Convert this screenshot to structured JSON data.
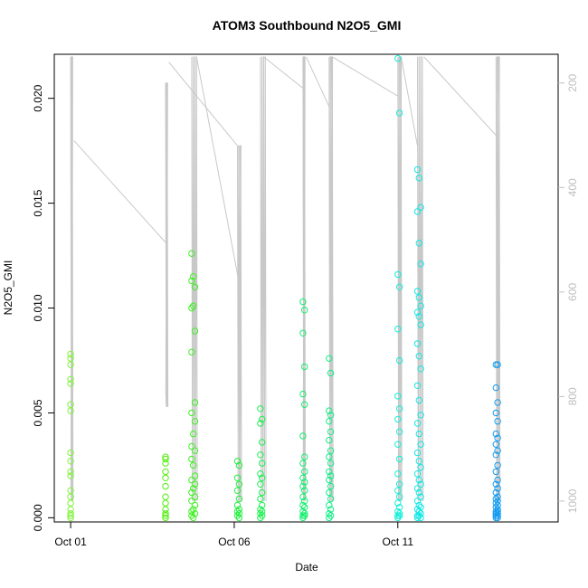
{
  "chart_data": {
    "type": "scatter",
    "title": "ATOM3 Southbound N2O5_GMI",
    "xlabel": "Date",
    "ylabel": "N2O5_GMI",
    "x_ticks": [
      "Oct 01",
      "Oct 06",
      "Oct 11"
    ],
    "x_tick_days": [
      1,
      6,
      11
    ],
    "xlim": [
      0.5,
      15.9
    ],
    "ylim": [
      -0.0002,
      0.0221
    ],
    "y_ticks": [
      0.0,
      0.005,
      0.01,
      0.015,
      0.02
    ],
    "y_tick_labels": [
      "0.000",
      "0.005",
      "0.010",
      "0.015",
      "0.020"
    ],
    "y2_label": "",
    "y2_lim": [
      1040,
      145
    ],
    "y2_ticks": [
      200,
      400,
      600,
      800,
      1000
    ],
    "y2_tick_labels": [
      "200",
      "400",
      "600",
      "800",
      "1000"
    ],
    "y2_reversed": true,
    "grid": false,
    "pressure_line_color": "#c8c8c8",
    "series": [
      {
        "color": "#7ff53a",
        "x": [
          1.0,
          1.0,
          1.0,
          1.0,
          1.0,
          1.0,
          1.0,
          1.0,
          1.0,
          1.0,
          1.0,
          1.0,
          1.0,
          1.0,
          1.0,
          1.0,
          1.0,
          1.0
        ],
        "y": [
          0.0078,
          0.0076,
          0.0073,
          0.0066,
          0.0064,
          0.0054,
          0.0051,
          0.0031,
          0.0027,
          0.0022,
          0.002,
          0.0013,
          0.001,
          0.0007,
          0.0004,
          0.0002,
          0.0001,
          0.0
        ]
      },
      {
        "color": "#52f00f",
        "x": [
          3.9,
          3.9,
          3.9,
          3.9,
          3.9,
          3.9,
          3.9,
          3.9,
          3.9,
          3.9,
          3.9,
          3.9
        ],
        "y": [
          0.0029,
          0.0028,
          0.0026,
          0.0022,
          0.0019,
          0.0015,
          0.001,
          0.0007,
          0.0004,
          0.0002,
          0.0001,
          0.0
        ]
      },
      {
        "color": "#3cf21f",
        "x": [
          4.7,
          4.75,
          4.7,
          4.8,
          4.75,
          4.7,
          4.8,
          4.7,
          4.8,
          4.7,
          4.8,
          4.75,
          4.7,
          4.8,
          4.7,
          4.75,
          4.8,
          4.7,
          4.8,
          4.75,
          4.7,
          4.8,
          4.7,
          4.8,
          4.75,
          4.7,
          4.8,
          4.7,
          4.75
        ],
        "y": [
          0.0126,
          0.0115,
          0.0113,
          0.011,
          0.0101,
          0.01,
          0.0089,
          0.0079,
          0.0055,
          0.005,
          0.0046,
          0.004,
          0.0034,
          0.0032,
          0.0028,
          0.0025,
          0.002,
          0.0018,
          0.0016,
          0.0014,
          0.0012,
          0.001,
          0.0008,
          0.0006,
          0.0004,
          0.0003,
          0.0002,
          0.0001,
          0.0
        ]
      },
      {
        "color": "#1ef03c",
        "x": [
          6.1,
          6.15,
          6.1,
          6.15,
          6.1,
          6.15,
          6.1,
          6.15,
          6.1,
          6.15,
          6.1,
          6.15
        ],
        "y": [
          0.0027,
          0.0025,
          0.0019,
          0.0016,
          0.0013,
          0.0009,
          0.0006,
          0.0004,
          0.0003,
          0.0002,
          0.0001,
          0.0
        ]
      },
      {
        "color": "#19f04f",
        "x": [
          6.8,
          6.85,
          6.8,
          6.85,
          6.8,
          6.85,
          6.8,
          6.85,
          6.8,
          6.85,
          6.8,
          6.85,
          6.8,
          6.85,
          6.8,
          6.85,
          6.8
        ],
        "y": [
          0.0052,
          0.0047,
          0.0045,
          0.0036,
          0.003,
          0.0026,
          0.0021,
          0.0019,
          0.0016,
          0.0012,
          0.0009,
          0.0006,
          0.0004,
          0.0003,
          0.0002,
          0.0001,
          0.0
        ]
      },
      {
        "color": "#13ef6d",
        "x": [
          8.1,
          8.15,
          8.1,
          8.15,
          8.1,
          8.15,
          8.1,
          8.15,
          8.1,
          8.15,
          8.1,
          8.15,
          8.1,
          8.15,
          8.1,
          8.15,
          8.1,
          8.15,
          8.1,
          8.15,
          8.1,
          8.15,
          8.1
        ],
        "y": [
          0.0103,
          0.0099,
          0.0088,
          0.0072,
          0.0059,
          0.0054,
          0.0039,
          0.0029,
          0.0026,
          0.0022,
          0.0019,
          0.0017,
          0.0015,
          0.0013,
          0.001,
          0.0008,
          0.0006,
          0.0005,
          0.0003,
          0.0002,
          0.0001,
          0.0001,
          0.0
        ]
      },
      {
        "color": "#10ee86",
        "x": [
          8.9,
          8.95,
          8.9,
          8.95,
          8.9,
          8.95,
          8.9,
          8.95,
          8.9,
          8.95,
          8.9,
          8.95,
          8.9,
          8.95,
          8.9,
          8.95,
          8.9,
          8.95,
          8.9,
          8.95,
          8.9
        ],
        "y": [
          0.0076,
          0.0069,
          0.0051,
          0.0049,
          0.0046,
          0.0041,
          0.0037,
          0.0032,
          0.0029,
          0.0026,
          0.0022,
          0.002,
          0.0018,
          0.0015,
          0.0012,
          0.0009,
          0.0006,
          0.0004,
          0.0002,
          0.0001,
          0.0
        ]
      },
      {
        "color": "#12eed6",
        "x": [
          11.0,
          11.05,
          11.0,
          11.05,
          11.0,
          11.05,
          11.0,
          11.05,
          11.0,
          11.05,
          11.0,
          11.05,
          11.0,
          11.05,
          11.0,
          11.05,
          11.0,
          11.05,
          11.0,
          11.05,
          11.0,
          11.05,
          11.0
        ],
        "y": [
          0.0219,
          0.0193,
          0.0116,
          0.011,
          0.009,
          0.0075,
          0.0058,
          0.0052,
          0.0047,
          0.0041,
          0.0035,
          0.0028,
          0.0021,
          0.0016,
          0.0013,
          0.001,
          0.0007,
          0.0005,
          0.0003,
          0.0002,
          0.0001,
          0.0001,
          0.0
        ]
      },
      {
        "color": "#10e8e4",
        "x": [
          11.6,
          11.65,
          11.7,
          11.6,
          11.65,
          11.7,
          11.6,
          11.65,
          11.7,
          11.6,
          11.65,
          11.7,
          11.6,
          11.65,
          11.7,
          11.6,
          11.65,
          11.7,
          11.6,
          11.65,
          11.7,
          11.6,
          11.65,
          11.7,
          11.6,
          11.65,
          11.7,
          11.6,
          11.65,
          11.7,
          11.6,
          11.65,
          11.7,
          11.6,
          11.65,
          11.7,
          11.6,
          11.65,
          11.7,
          11.6
        ],
        "y": [
          0.0166,
          0.0162,
          0.0148,
          0.0146,
          0.0131,
          0.0121,
          0.0108,
          0.0105,
          0.0101,
          0.0098,
          0.0096,
          0.0092,
          0.0083,
          0.0077,
          0.0071,
          0.0063,
          0.0056,
          0.0049,
          0.0045,
          0.004,
          0.0035,
          0.0031,
          0.0027,
          0.0024,
          0.0021,
          0.0018,
          0.0016,
          0.0014,
          0.0012,
          0.001,
          0.0008,
          0.0006,
          0.0005,
          0.0004,
          0.0003,
          0.0002,
          0.0001,
          0.0001,
          0.0,
          0.0
        ]
      },
      {
        "color": "#139cf0",
        "x": [
          14.0,
          14.05,
          14.0,
          14.05,
          14.0,
          14.05,
          14.0,
          14.05,
          14.0,
          14.05,
          14.0,
          14.05,
          14.0,
          14.05,
          14.0,
          14.05,
          14.0,
          14.05,
          14.0,
          14.05,
          14.0,
          14.05,
          14.0,
          14.05,
          14.0,
          14.05,
          14.0,
          14.05,
          14.0,
          14.05,
          14.0,
          14.05
        ],
        "y": [
          0.0073,
          0.0073,
          0.0062,
          0.0055,
          0.005,
          0.0046,
          0.004,
          0.0038,
          0.0035,
          0.0032,
          0.003,
          0.0025,
          0.0022,
          0.0018,
          0.0016,
          0.0014,
          0.0012,
          0.001,
          0.0009,
          0.0008,
          0.0007,
          0.0006,
          0.0005,
          0.0004,
          0.0003,
          0.0003,
          0.0002,
          0.0002,
          0.0001,
          0.0001,
          0.0,
          0.0
        ]
      }
    ],
    "pressure_profiles": [
      {
        "day_start": 1.0,
        "day_end": 1.05,
        "p_low": 150,
        "p_high": 1000
      },
      {
        "day_start": 3.9,
        "day_end": 3.95,
        "p_low": 200,
        "p_high": 820
      },
      {
        "day_start": 4.7,
        "day_end": 4.85,
        "p_low": 150,
        "p_high": 1000
      },
      {
        "day_start": 6.1,
        "day_end": 6.2,
        "p_low": 320,
        "p_high": 1000
      },
      {
        "day_start": 6.8,
        "day_end": 6.95,
        "p_low": 150,
        "p_high": 1000
      },
      {
        "day_start": 8.1,
        "day_end": 8.15,
        "p_low": 150,
        "p_high": 1000
      },
      {
        "day_start": 8.9,
        "day_end": 9.0,
        "p_low": 150,
        "p_high": 1000
      },
      {
        "day_start": 11.0,
        "day_end": 11.1,
        "p_low": 150,
        "p_high": 1000
      },
      {
        "day_start": 11.6,
        "day_end": 11.75,
        "p_low": 150,
        "p_high": 1000
      },
      {
        "day_start": 14.0,
        "day_end": 14.1,
        "p_low": 150,
        "p_high": 1000
      }
    ],
    "pressure_transits": [
      [
        1.1,
        310,
        3.9,
        505
      ],
      [
        4.0,
        160,
        6.1,
        320
      ],
      [
        4.85,
        150,
        6.2,
        600
      ],
      [
        6.9,
        150,
        8.1,
        210
      ],
      [
        8.2,
        150,
        8.9,
        245
      ],
      [
        9.0,
        150,
        11.0,
        225
      ],
      [
        11.1,
        150,
        11.6,
        320
      ],
      [
        11.8,
        150,
        14.0,
        300
      ]
    ]
  }
}
